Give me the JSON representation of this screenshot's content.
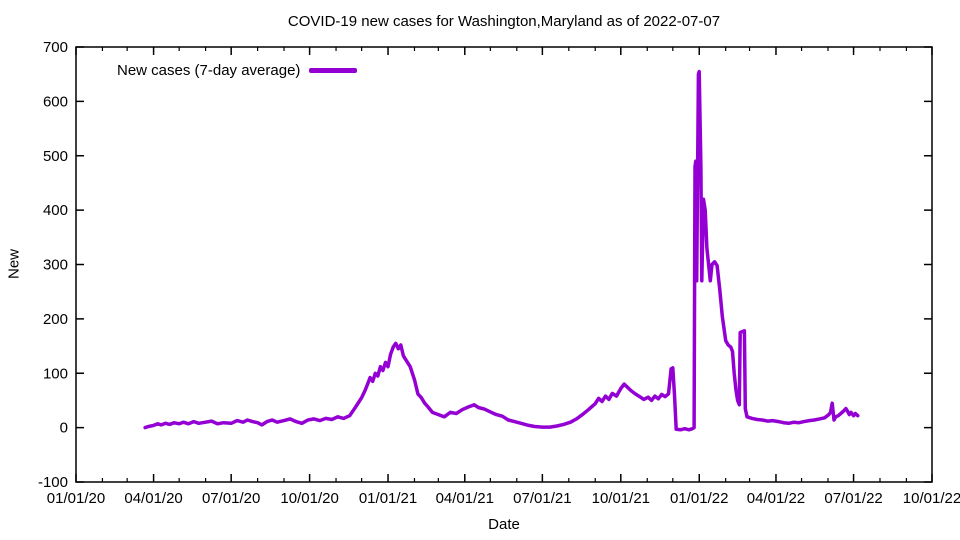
{
  "chart": {
    "title": "COVID-19 new cases for Washington,Maryland as of 2022-07-07",
    "xlabel": "Date",
    "ylabel": "New",
    "legend_label": "New cases (7-day average)",
    "line_color": "#9400d3",
    "axis_color": "#000000",
    "background_color": "#ffffff"
  },
  "chart_data": {
    "type": "line",
    "title": "COVID-19 new cases for Washington,Maryland as of 2022-07-07",
    "xlabel": "Date",
    "ylabel": "New",
    "legend": [
      "New cases (7-day average)"
    ],
    "legend_position": "top-left-inside",
    "grid": false,
    "xlim": [
      "2020-01-01",
      "2022-10-01"
    ],
    "ylim": [
      -100,
      700
    ],
    "y_ticks": [
      -100,
      0,
      100,
      200,
      300,
      400,
      500,
      600,
      700
    ],
    "x_ticks": [
      {
        "label": "01/01/20",
        "date": "2020-01-01"
      },
      {
        "label": "04/01/20",
        "date": "2020-04-01"
      },
      {
        "label": "07/01/20",
        "date": "2020-07-01"
      },
      {
        "label": "10/01/20",
        "date": "2020-10-01"
      },
      {
        "label": "01/01/21",
        "date": "2021-01-01"
      },
      {
        "label": "04/01/21",
        "date": "2021-04-01"
      },
      {
        "label": "07/01/21",
        "date": "2021-07-01"
      },
      {
        "label": "10/01/21",
        "date": "2021-10-01"
      },
      {
        "label": "01/01/22",
        "date": "2022-01-01"
      },
      {
        "label": "04/01/22",
        "date": "2022-04-01"
      },
      {
        "label": "07/01/22",
        "date": "2022-07-01"
      },
      {
        "label": "10/01/22",
        "date": "2022-10-01"
      }
    ],
    "x_minor_tick_interval": "month",
    "series": [
      {
        "name": "New cases (7-day average)",
        "color": "#9400d3",
        "points": [
          [
            "2020-03-22",
            0
          ],
          [
            "2020-03-26",
            2
          ],
          [
            "2020-04-01",
            4
          ],
          [
            "2020-04-06",
            7
          ],
          [
            "2020-04-10",
            5
          ],
          [
            "2020-04-15",
            8
          ],
          [
            "2020-04-20",
            6
          ],
          [
            "2020-04-25",
            9
          ],
          [
            "2020-05-01",
            7
          ],
          [
            "2020-05-06",
            10
          ],
          [
            "2020-05-12",
            7
          ],
          [
            "2020-05-18",
            11
          ],
          [
            "2020-05-24",
            8
          ],
          [
            "2020-06-01",
            10
          ],
          [
            "2020-06-08",
            12
          ],
          [
            "2020-06-15",
            7
          ],
          [
            "2020-06-22",
            9
          ],
          [
            "2020-07-01",
            8
          ],
          [
            "2020-07-08",
            13
          ],
          [
            "2020-07-15",
            10
          ],
          [
            "2020-07-20",
            14
          ],
          [
            "2020-07-26",
            11
          ],
          [
            "2020-08-01",
            9
          ],
          [
            "2020-08-06",
            5
          ],
          [
            "2020-08-12",
            11
          ],
          [
            "2020-08-18",
            14
          ],
          [
            "2020-08-24",
            10
          ],
          [
            "2020-09-01",
            13
          ],
          [
            "2020-09-08",
            16
          ],
          [
            "2020-09-15",
            11
          ],
          [
            "2020-09-22",
            8
          ],
          [
            "2020-09-29",
            14
          ],
          [
            "2020-10-06",
            16
          ],
          [
            "2020-10-13",
            13
          ],
          [
            "2020-10-20",
            17
          ],
          [
            "2020-10-27",
            15
          ],
          [
            "2020-11-03",
            20
          ],
          [
            "2020-11-10",
            17
          ],
          [
            "2020-11-17",
            22
          ],
          [
            "2020-11-24",
            38
          ],
          [
            "2020-12-01",
            55
          ],
          [
            "2020-12-05",
            68
          ],
          [
            "2020-12-08",
            80
          ],
          [
            "2020-12-11",
            92
          ],
          [
            "2020-12-14",
            85
          ],
          [
            "2020-12-17",
            100
          ],
          [
            "2020-12-20",
            95
          ],
          [
            "2020-12-23",
            112
          ],
          [
            "2020-12-26",
            105
          ],
          [
            "2020-12-29",
            120
          ],
          [
            "2021-01-01",
            112
          ],
          [
            "2021-01-04",
            135
          ],
          [
            "2021-01-07",
            148
          ],
          [
            "2021-01-10",
            155
          ],
          [
            "2021-01-13",
            145
          ],
          [
            "2021-01-16",
            152
          ],
          [
            "2021-01-19",
            132
          ],
          [
            "2021-01-23",
            122
          ],
          [
            "2021-01-27",
            112
          ],
          [
            "2021-02-01",
            88
          ],
          [
            "2021-02-05",
            62
          ],
          [
            "2021-02-09",
            55
          ],
          [
            "2021-02-13",
            45
          ],
          [
            "2021-02-17",
            38
          ],
          [
            "2021-02-22",
            28
          ],
          [
            "2021-03-01",
            24
          ],
          [
            "2021-03-08",
            20
          ],
          [
            "2021-03-15",
            28
          ],
          [
            "2021-03-22",
            26
          ],
          [
            "2021-03-29",
            33
          ],
          [
            "2021-04-05",
            38
          ],
          [
            "2021-04-12",
            42
          ],
          [
            "2021-04-17",
            37
          ],
          [
            "2021-04-24",
            34
          ],
          [
            "2021-05-01",
            29
          ],
          [
            "2021-05-08",
            24
          ],
          [
            "2021-05-15",
            21
          ],
          [
            "2021-05-22",
            14
          ],
          [
            "2021-06-01",
            10
          ],
          [
            "2021-06-08",
            7
          ],
          [
            "2021-06-15",
            4
          ],
          [
            "2021-06-22",
            2
          ],
          [
            "2021-07-01",
            1
          ],
          [
            "2021-07-10",
            1
          ],
          [
            "2021-07-18",
            3
          ],
          [
            "2021-07-26",
            6
          ],
          [
            "2021-08-03",
            10
          ],
          [
            "2021-08-10",
            16
          ],
          [
            "2021-08-17",
            24
          ],
          [
            "2021-08-24",
            33
          ],
          [
            "2021-09-01",
            44
          ],
          [
            "2021-09-05",
            54
          ],
          [
            "2021-09-09",
            48
          ],
          [
            "2021-09-13",
            58
          ],
          [
            "2021-09-17",
            52
          ],
          [
            "2021-09-21",
            63
          ],
          [
            "2021-09-26",
            58
          ],
          [
            "2021-10-01",
            72
          ],
          [
            "2021-10-05",
            80
          ],
          [
            "2021-10-09",
            74
          ],
          [
            "2021-10-13",
            68
          ],
          [
            "2021-10-18",
            62
          ],
          [
            "2021-10-23",
            57
          ],
          [
            "2021-10-28",
            52
          ],
          [
            "2021-11-02",
            56
          ],
          [
            "2021-11-06",
            50
          ],
          [
            "2021-11-10",
            58
          ],
          [
            "2021-11-14",
            53
          ],
          [
            "2021-11-18",
            61
          ],
          [
            "2021-11-22",
            57
          ],
          [
            "2021-11-26",
            62
          ],
          [
            "2021-11-29",
            108
          ],
          [
            "2021-12-01",
            110
          ],
          [
            "2021-12-03",
            60
          ],
          [
            "2021-12-05",
            -3
          ],
          [
            "2021-12-10",
            -4
          ],
          [
            "2021-12-15",
            -2
          ],
          [
            "2021-12-20",
            -4
          ],
          [
            "2021-12-24",
            -2
          ],
          [
            "2021-12-26",
            0
          ],
          [
            "2021-12-27",
            480
          ],
          [
            "2021-12-28",
            490
          ],
          [
            "2021-12-29",
            270
          ],
          [
            "2021-12-31",
            650
          ],
          [
            "2022-01-01",
            655
          ],
          [
            "2022-01-03",
            480
          ],
          [
            "2022-01-04",
            270
          ],
          [
            "2022-01-06",
            420
          ],
          [
            "2022-01-08",
            400
          ],
          [
            "2022-01-10",
            330
          ],
          [
            "2022-01-12",
            300
          ],
          [
            "2022-01-14",
            270
          ],
          [
            "2022-01-16",
            300
          ],
          [
            "2022-01-19",
            305
          ],
          [
            "2022-01-22",
            298
          ],
          [
            "2022-01-25",
            255
          ],
          [
            "2022-01-28",
            205
          ],
          [
            "2022-02-01",
            160
          ],
          [
            "2022-02-04",
            152
          ],
          [
            "2022-02-07",
            148
          ],
          [
            "2022-02-09",
            140
          ],
          [
            "2022-02-11",
            100
          ],
          [
            "2022-02-13",
            70
          ],
          [
            "2022-02-15",
            50
          ],
          [
            "2022-02-17",
            42
          ],
          [
            "2022-02-18",
            175
          ],
          [
            "2022-02-23",
            178
          ],
          [
            "2022-02-24",
            35
          ],
          [
            "2022-02-26",
            20
          ],
          [
            "2022-03-04",
            17
          ],
          [
            "2022-03-10",
            15
          ],
          [
            "2022-03-16",
            14
          ],
          [
            "2022-03-22",
            12
          ],
          [
            "2022-03-28",
            13
          ],
          [
            "2022-04-04",
            11
          ],
          [
            "2022-04-10",
            9
          ],
          [
            "2022-04-16",
            8
          ],
          [
            "2022-04-22",
            10
          ],
          [
            "2022-04-28",
            9
          ],
          [
            "2022-05-04",
            11
          ],
          [
            "2022-05-10",
            13
          ],
          [
            "2022-05-16",
            14
          ],
          [
            "2022-05-22",
            16
          ],
          [
            "2022-05-28",
            18
          ],
          [
            "2022-06-02",
            24
          ],
          [
            "2022-06-04",
            28
          ],
          [
            "2022-06-06",
            45
          ],
          [
            "2022-06-08",
            14
          ],
          [
            "2022-06-10",
            20
          ],
          [
            "2022-06-13",
            22
          ],
          [
            "2022-06-16",
            26
          ],
          [
            "2022-06-19",
            30
          ],
          [
            "2022-06-22",
            35
          ],
          [
            "2022-06-24",
            30
          ],
          [
            "2022-06-26",
            24
          ],
          [
            "2022-06-28",
            28
          ],
          [
            "2022-07-01",
            22
          ],
          [
            "2022-07-03",
            26
          ],
          [
            "2022-07-06",
            22
          ]
        ]
      }
    ]
  }
}
